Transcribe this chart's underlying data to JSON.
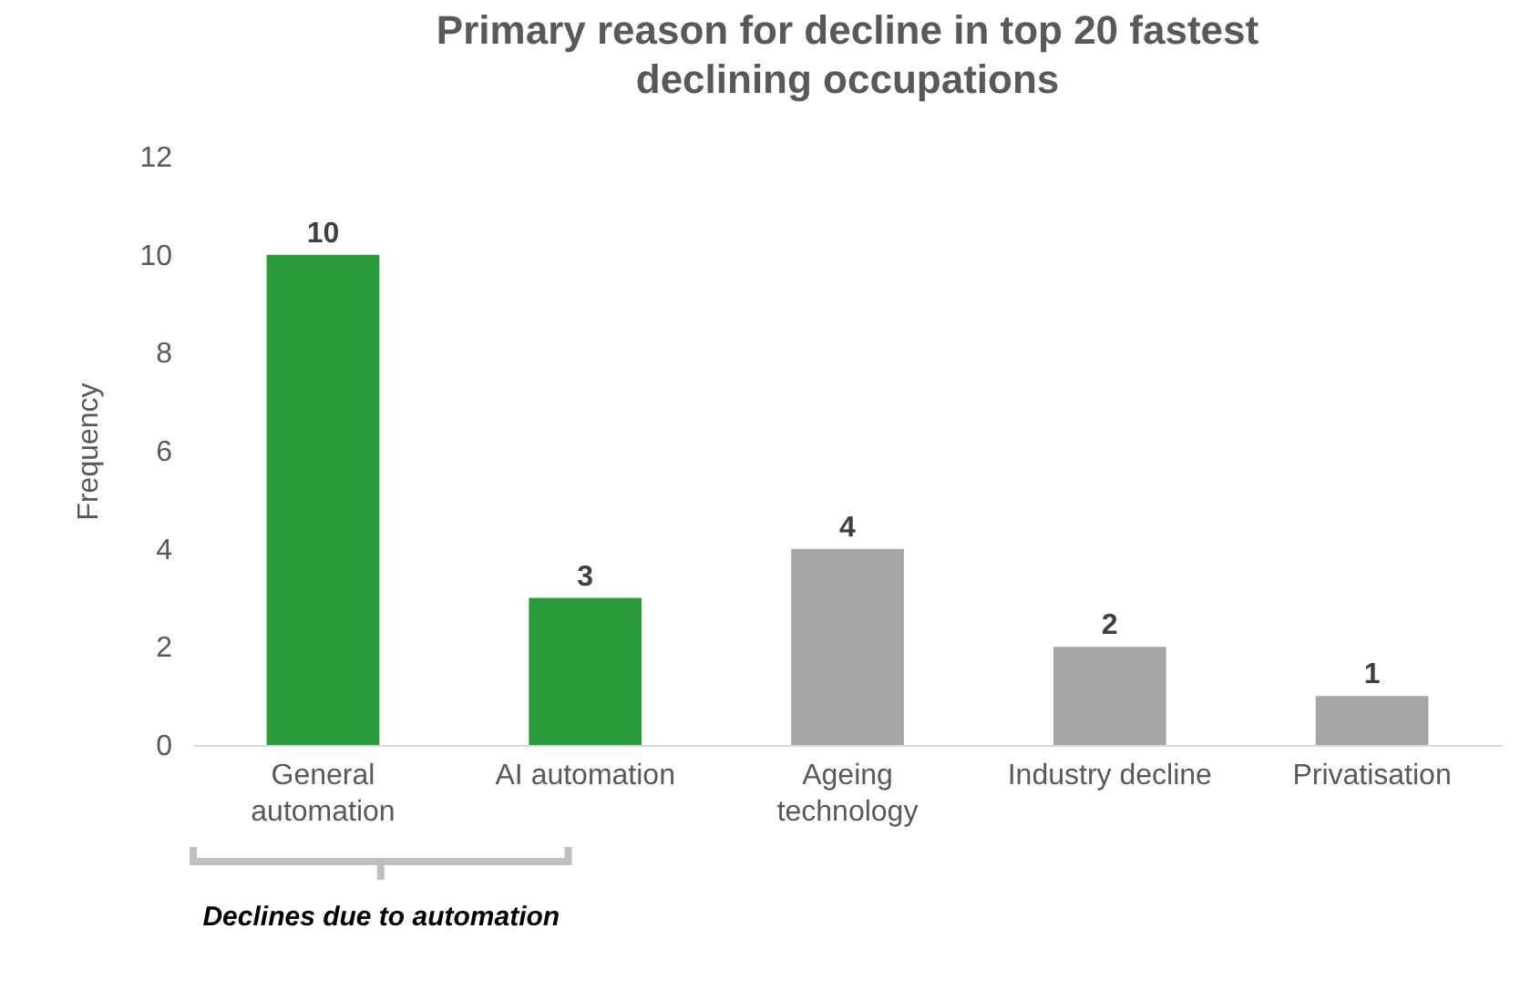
{
  "chart_data": {
    "type": "bar",
    "title": "Primary reason for decline in top 20 fastest declining occupations",
    "ylabel": "Frequency",
    "categories": [
      "General automation",
      "AI automation",
      "Ageing technology",
      "Industry decline",
      "Privatisation"
    ],
    "values": [
      10,
      3,
      4,
      2,
      1
    ],
    "colors": [
      "#2a9b3b",
      "#2a9b3b",
      "#a6a6a6",
      "#a6a6a6",
      "#a6a6a6"
    ],
    "ylim": [
      0,
      12
    ],
    "yticks": [
      0,
      2,
      4,
      6,
      8,
      10,
      12
    ],
    "grid": false,
    "legend": false,
    "data_labels": true,
    "annotations": [
      "Declines due to automation"
    ]
  }
}
